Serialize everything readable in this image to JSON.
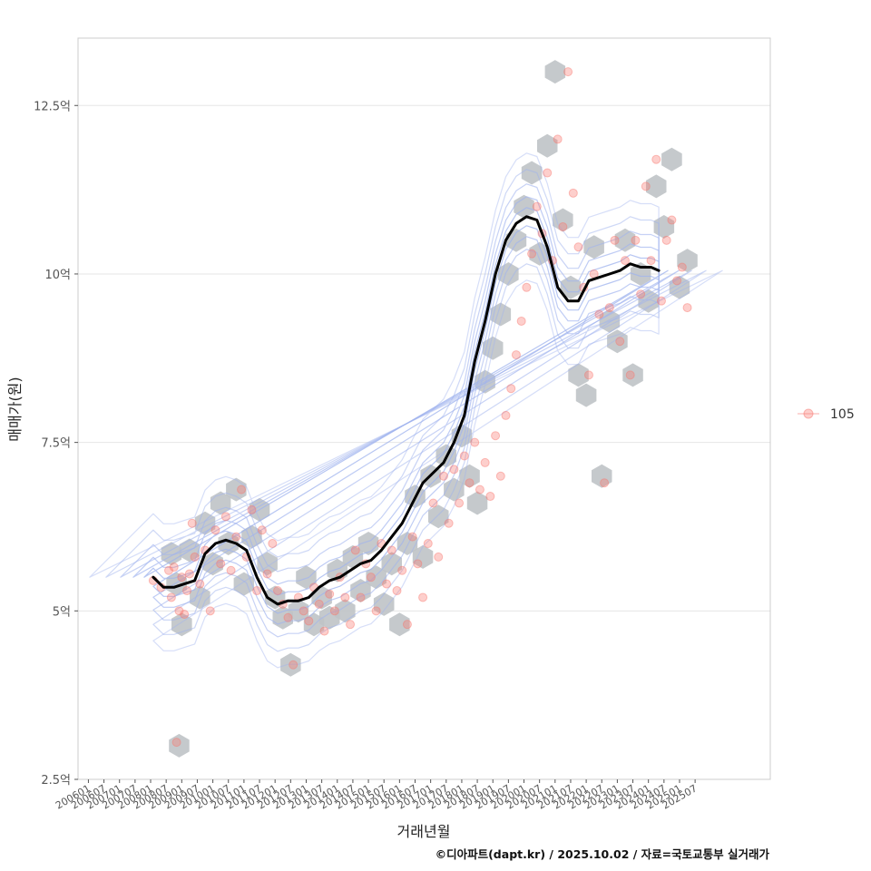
{
  "chart_data": {
    "type": "scatter",
    "xlabel": "거래년월",
    "ylabel": "매매가(원)",
    "caption": "©디아파트(dapt.kr) / 2025.10.02 / 자료=국토교통부 실거래가",
    "legend": {
      "position": "right",
      "entries": [
        "105"
      ]
    },
    "grid": true,
    "colors": {
      "points": "#f8766d",
      "trend": "#000000",
      "hex": "#bfc3c6",
      "contour": "#9fb3ee",
      "grid": "#e6e6e6",
      "panel_border": "#cccccc"
    },
    "xlim": [
      "2005-09",
      "2027-12"
    ],
    "ylim": [
      2.5,
      13.5
    ],
    "yticks": [
      {
        "value": 2.5,
        "label": "2.5억"
      },
      {
        "value": 5,
        "label": "5억"
      },
      {
        "value": 7.5,
        "label": "7.5억"
      },
      {
        "value": 10,
        "label": "10억"
      },
      {
        "value": 12.5,
        "label": "12.5억"
      }
    ],
    "xticks": [
      "200601",
      "200607",
      "200701",
      "200707",
      "200801",
      "200807",
      "200901",
      "200907",
      "201001",
      "201007",
      "201101",
      "201107",
      "201201",
      "201207",
      "201301",
      "201307",
      "201401",
      "201407",
      "201501",
      "201507",
      "201601",
      "201607",
      "201701",
      "201707",
      "201801",
      "201807",
      "201901",
      "201907",
      "202001",
      "202007",
      "202101",
      "202107",
      "202201",
      "202207",
      "202301",
      "202307",
      "202401",
      "202407",
      "202501",
      "202507"
    ],
    "series": [
      {
        "name": "105",
        "points": [
          [
            "2008-02",
            5.45
          ],
          [
            "2008-05",
            5.35
          ],
          [
            "2008-08",
            5.6
          ],
          [
            "2008-09",
            5.2
          ],
          [
            "2008-10",
            5.65
          ],
          [
            "2008-11",
            3.05
          ],
          [
            "2008-12",
            5.0
          ],
          [
            "2009-01",
            5.5
          ],
          [
            "2009-02",
            4.95
          ],
          [
            "2009-03",
            5.3
          ],
          [
            "2009-04",
            5.55
          ],
          [
            "2009-05",
            6.3
          ],
          [
            "2009-06",
            5.8
          ],
          [
            "2009-08",
            5.4
          ],
          [
            "2009-10",
            5.9
          ],
          [
            "2009-12",
            5.0
          ],
          [
            "2010-02",
            6.2
          ],
          [
            "2010-04",
            5.7
          ],
          [
            "2010-06",
            6.4
          ],
          [
            "2010-08",
            5.6
          ],
          [
            "2010-10",
            6.1
          ],
          [
            "2010-12",
            6.8
          ],
          [
            "2011-02",
            5.8
          ],
          [
            "2011-04",
            6.5
          ],
          [
            "2011-06",
            5.3
          ],
          [
            "2011-08",
            6.2
          ],
          [
            "2011-10",
            5.55
          ],
          [
            "2011-12",
            6.0
          ],
          [
            "2012-02",
            5.3
          ],
          [
            "2012-04",
            5.1
          ],
          [
            "2012-06",
            4.9
          ],
          [
            "2012-08",
            4.2
          ],
          [
            "2012-10",
            5.2
          ],
          [
            "2012-12",
            5.0
          ],
          [
            "2013-02",
            4.85
          ],
          [
            "2013-04",
            5.35
          ],
          [
            "2013-06",
            5.1
          ],
          [
            "2013-08",
            4.7
          ],
          [
            "2013-10",
            5.25
          ],
          [
            "2013-12",
            5.0
          ],
          [
            "2014-02",
            5.5
          ],
          [
            "2014-04",
            5.2
          ],
          [
            "2014-06",
            4.8
          ],
          [
            "2014-08",
            5.9
          ],
          [
            "2014-10",
            5.2
          ],
          [
            "2014-12",
            5.7
          ],
          [
            "2015-02",
            5.5
          ],
          [
            "2015-04",
            5.0
          ],
          [
            "2015-06",
            6.0
          ],
          [
            "2015-08",
            5.4
          ],
          [
            "2015-10",
            5.9
          ],
          [
            "2015-12",
            5.3
          ],
          [
            "2016-02",
            5.6
          ],
          [
            "2016-04",
            4.8
          ],
          [
            "2016-06",
            6.1
          ],
          [
            "2016-08",
            5.7
          ],
          [
            "2016-10",
            5.2
          ],
          [
            "2016-12",
            6.0
          ],
          [
            "2017-02",
            6.6
          ],
          [
            "2017-04",
            5.8
          ],
          [
            "2017-06",
            7.0
          ],
          [
            "2017-08",
            6.3
          ],
          [
            "2017-10",
            7.1
          ],
          [
            "2017-12",
            6.6
          ],
          [
            "2018-02",
            7.3
          ],
          [
            "2018-04",
            6.9
          ],
          [
            "2018-06",
            7.5
          ],
          [
            "2018-08",
            6.8
          ],
          [
            "2018-10",
            7.2
          ],
          [
            "2018-12",
            6.7
          ],
          [
            "2019-02",
            7.6
          ],
          [
            "2019-04",
            7.0
          ],
          [
            "2019-06",
            7.9
          ],
          [
            "2019-08",
            8.3
          ],
          [
            "2019-10",
            8.8
          ],
          [
            "2019-12",
            9.3
          ],
          [
            "2020-02",
            9.8
          ],
          [
            "2020-04",
            10.3
          ],
          [
            "2020-06",
            11.0
          ],
          [
            "2020-08",
            10.6
          ],
          [
            "2020-10",
            11.5
          ],
          [
            "2020-12",
            10.2
          ],
          [
            "2021-02",
            12.0
          ],
          [
            "2021-04",
            10.7
          ],
          [
            "2021-06",
            13.0
          ],
          [
            "2021-08",
            11.2
          ],
          [
            "2021-10",
            10.4
          ],
          [
            "2021-12",
            9.8
          ],
          [
            "2022-02",
            8.5
          ],
          [
            "2022-04",
            10.0
          ],
          [
            "2022-06",
            9.4
          ],
          [
            "2022-08",
            6.9
          ],
          [
            "2022-10",
            9.5
          ],
          [
            "2022-12",
            10.5
          ],
          [
            "2023-02",
            9.0
          ],
          [
            "2023-04",
            10.2
          ],
          [
            "2023-06",
            8.5
          ],
          [
            "2023-08",
            10.5
          ],
          [
            "2023-10",
            9.7
          ],
          [
            "2023-12",
            11.3
          ],
          [
            "2024-02",
            10.2
          ],
          [
            "2024-04",
            11.7
          ],
          [
            "2024-06",
            9.6
          ],
          [
            "2024-08",
            10.5
          ],
          [
            "2024-10",
            10.8
          ],
          [
            "2024-12",
            9.9
          ],
          [
            "2025-02",
            10.1
          ],
          [
            "2025-04",
            9.5
          ]
        ]
      }
    ],
    "trend": [
      [
        "2008-02",
        5.5
      ],
      [
        "2008-06",
        5.35
      ],
      [
        "2008-10",
        5.35
      ],
      [
        "2009-02",
        5.4
      ],
      [
        "2009-06",
        5.45
      ],
      [
        "2009-10",
        5.85
      ],
      [
        "2010-02",
        6.0
      ],
      [
        "2010-06",
        6.05
      ],
      [
        "2010-10",
        6.0
      ],
      [
        "2011-02",
        5.9
      ],
      [
        "2011-06",
        5.5
      ],
      [
        "2011-10",
        5.2
      ],
      [
        "2012-02",
        5.1
      ],
      [
        "2012-06",
        5.15
      ],
      [
        "2012-10",
        5.15
      ],
      [
        "2013-02",
        5.2
      ],
      [
        "2013-06",
        5.35
      ],
      [
        "2013-10",
        5.45
      ],
      [
        "2014-02",
        5.5
      ],
      [
        "2014-06",
        5.6
      ],
      [
        "2014-10",
        5.7
      ],
      [
        "2015-02",
        5.75
      ],
      [
        "2015-06",
        5.9
      ],
      [
        "2015-10",
        6.1
      ],
      [
        "2016-02",
        6.3
      ],
      [
        "2016-06",
        6.6
      ],
      [
        "2016-10",
        6.9
      ],
      [
        "2017-02",
        7.05
      ],
      [
        "2017-06",
        7.2
      ],
      [
        "2017-10",
        7.5
      ],
      [
        "2018-02",
        7.9
      ],
      [
        "2018-06",
        8.7
      ],
      [
        "2018-10",
        9.3
      ],
      [
        "2019-02",
        10.0
      ],
      [
        "2019-06",
        10.5
      ],
      [
        "2019-10",
        10.75
      ],
      [
        "2020-02",
        10.85
      ],
      [
        "2020-06",
        10.8
      ],
      [
        "2020-10",
        10.4
      ],
      [
        "2021-02",
        9.8
      ],
      [
        "2021-06",
        9.6
      ],
      [
        "2021-10",
        9.6
      ],
      [
        "2022-02",
        9.9
      ],
      [
        "2022-06",
        9.95
      ],
      [
        "2022-10",
        10.0
      ],
      [
        "2023-02",
        10.05
      ],
      [
        "2023-06",
        10.15
      ],
      [
        "2023-10",
        10.1
      ],
      [
        "2024-02",
        10.1
      ],
      [
        "2024-05",
        10.05
      ]
    ],
    "hexbins": [
      [
        "2008-09",
        5.85
      ],
      [
        "2008-11",
        5.4
      ],
      [
        "2009-01",
        4.8
      ],
      [
        "2008-12",
        3.0
      ],
      [
        "2009-04",
        5.9
      ],
      [
        "2009-08",
        5.2
      ],
      [
        "2009-10",
        6.3
      ],
      [
        "2010-01",
        5.7
      ],
      [
        "2010-04",
        6.6
      ],
      [
        "2010-07",
        6.0
      ],
      [
        "2010-10",
        6.8
      ],
      [
        "2011-01",
        5.4
      ],
      [
        "2011-04",
        6.1
      ],
      [
        "2011-07",
        6.5
      ],
      [
        "2011-10",
        5.7
      ],
      [
        "2012-01",
        5.2
      ],
      [
        "2012-04",
        4.9
      ],
      [
        "2012-07",
        4.2
      ],
      [
        "2012-10",
        5.0
      ],
      [
        "2013-01",
        5.5
      ],
      [
        "2013-04",
        4.8
      ],
      [
        "2013-07",
        5.2
      ],
      [
        "2013-10",
        4.9
      ],
      [
        "2014-01",
        5.6
      ],
      [
        "2014-04",
        5.0
      ],
      [
        "2014-07",
        5.8
      ],
      [
        "2014-10",
        5.3
      ],
      [
        "2015-01",
        6.0
      ],
      [
        "2015-04",
        5.5
      ],
      [
        "2015-07",
        5.1
      ],
      [
        "2015-10",
        5.7
      ],
      [
        "2016-01",
        4.8
      ],
      [
        "2016-04",
        6.0
      ],
      [
        "2016-07",
        6.7
      ],
      [
        "2016-10",
        5.8
      ],
      [
        "2017-01",
        7.0
      ],
      [
        "2017-04",
        6.4
      ],
      [
        "2017-07",
        7.3
      ],
      [
        "2017-10",
        6.8
      ],
      [
        "2018-01",
        7.6
      ],
      [
        "2018-04",
        7.0
      ],
      [
        "2018-07",
        6.6
      ],
      [
        "2018-10",
        8.4
      ],
      [
        "2019-01",
        8.9
      ],
      [
        "2019-04",
        9.4
      ],
      [
        "2019-07",
        10.0
      ],
      [
        "2019-10",
        10.5
      ],
      [
        "2020-01",
        11.0
      ],
      [
        "2020-04",
        11.5
      ],
      [
        "2020-07",
        10.3
      ],
      [
        "2020-10",
        11.9
      ],
      [
        "2021-01",
        13.0
      ],
      [
        "2021-04",
        10.8
      ],
      [
        "2021-07",
        9.8
      ],
      [
        "2021-10",
        8.5
      ],
      [
        "2022-01",
        8.2
      ],
      [
        "2022-04",
        10.4
      ],
      [
        "2022-07",
        7.0
      ],
      [
        "2022-10",
        9.3
      ],
      [
        "2023-01",
        9.0
      ],
      [
        "2023-04",
        10.5
      ],
      [
        "2023-07",
        8.5
      ],
      [
        "2023-10",
        10.0
      ],
      [
        "2024-01",
        9.6
      ],
      [
        "2024-04",
        11.3
      ],
      [
        "2024-07",
        10.7
      ],
      [
        "2024-10",
        11.7
      ],
      [
        "2025-01",
        9.8
      ],
      [
        "2025-04",
        10.2
      ]
    ]
  }
}
